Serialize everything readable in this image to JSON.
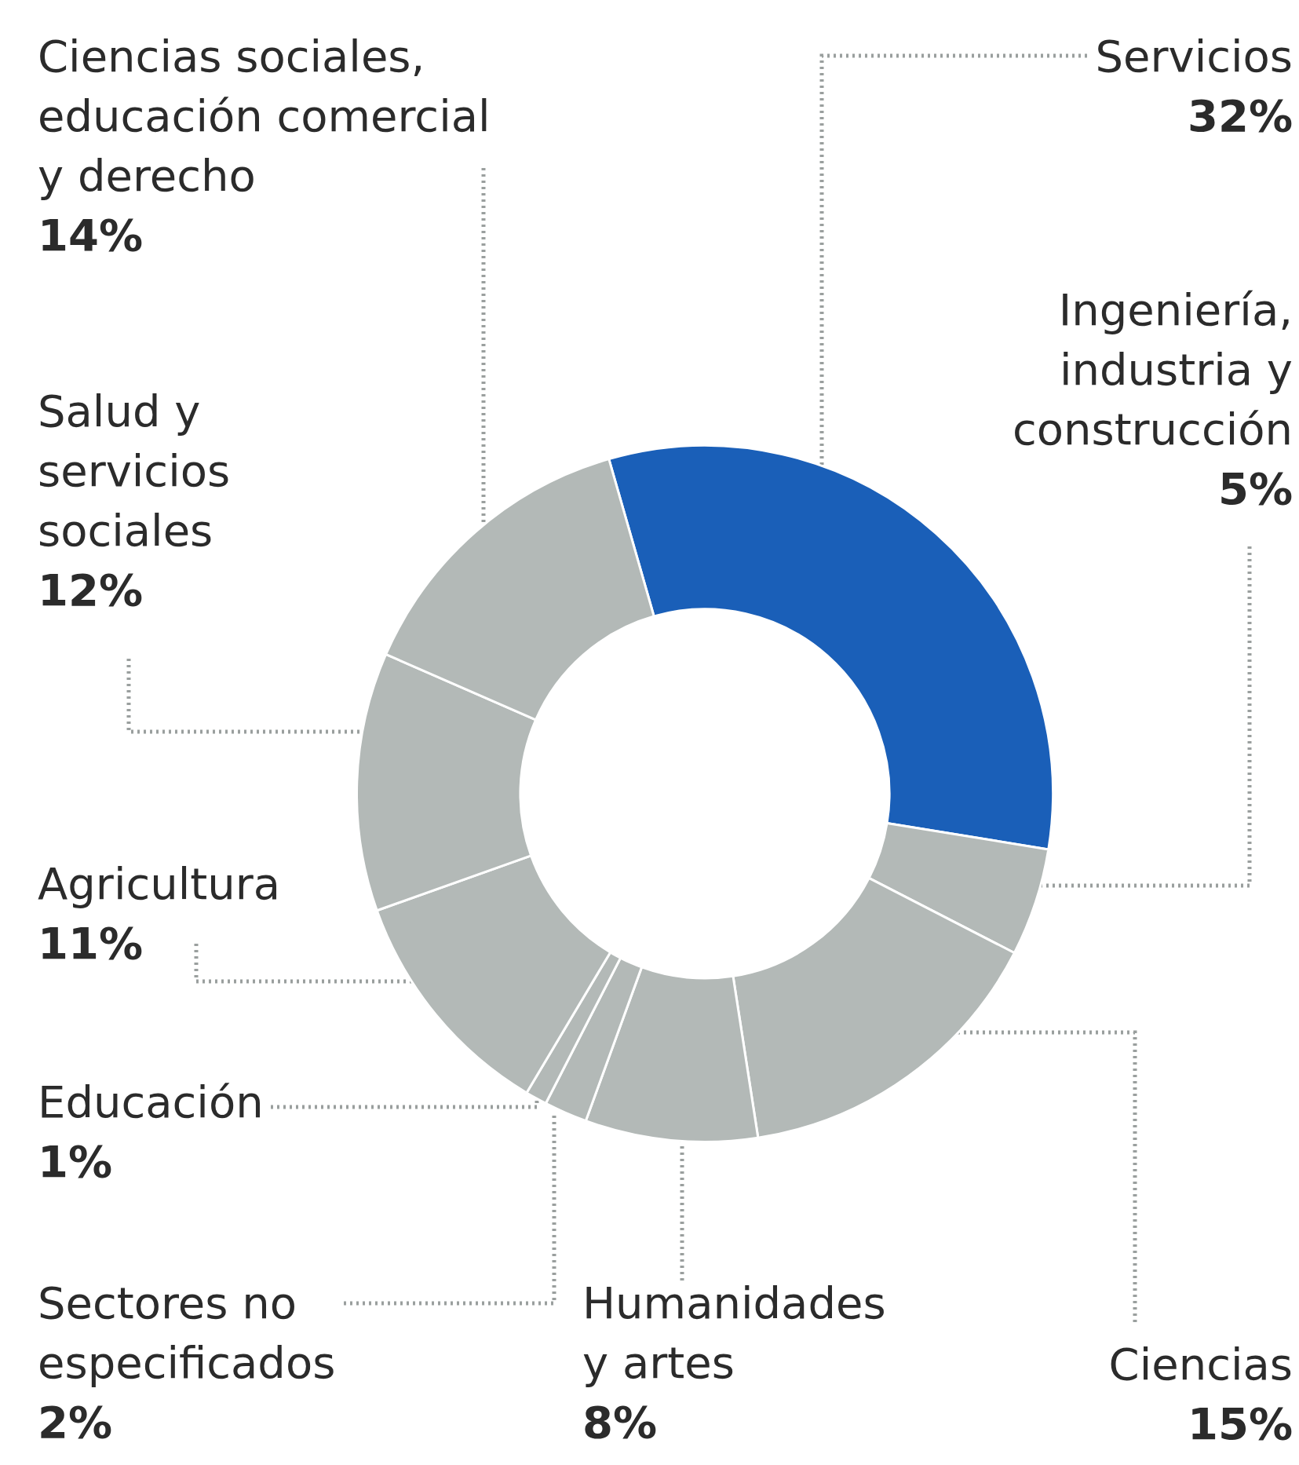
{
  "chart_data": {
    "type": "donut",
    "categories": [
      "Servicios",
      "Ingeniería, industria y construcción",
      "Ciencias",
      "Humanidades y artes",
      "Sectores no especificados",
      "Educación",
      "Agricultura",
      "Salud y servicios sociales",
      "Ciencias sociales, educación comercial y derecho"
    ],
    "values": [
      32,
      5,
      15,
      8,
      2,
      1,
      11,
      12,
      14
    ],
    "value_labels": [
      "32%",
      "5%",
      "15%",
      "8%",
      "2%",
      "1%",
      "11%",
      "12%",
      "14%"
    ],
    "colors": [
      "#1a5fb8",
      "#b3b9b7",
      "#b3b9b7",
      "#b3b9b7",
      "#b3b9b7",
      "#b3b9b7",
      "#b3b9b7",
      "#b3b9b7",
      "#b3b9b7"
    ]
  }
}
